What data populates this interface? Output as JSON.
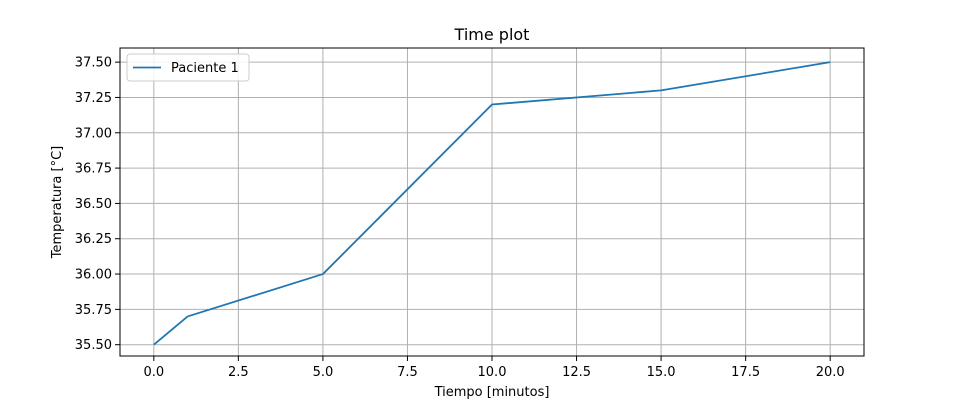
{
  "chart_data": {
    "type": "line",
    "title": "Time plot",
    "xlabel": "Tiempo [minutos]",
    "ylabel": "Temperatura [°C]",
    "xlim": [
      -1.0,
      21.0
    ],
    "ylim": [
      35.42,
      37.6
    ],
    "xticks": [
      0.0,
      2.5,
      5.0,
      7.5,
      10.0,
      12.5,
      15.0,
      17.5,
      20.0
    ],
    "xtick_labels": [
      "0.0",
      "2.5",
      "5.0",
      "7.5",
      "10.0",
      "12.5",
      "15.0",
      "17.5",
      "20.0"
    ],
    "yticks": [
      35.5,
      35.75,
      36.0,
      36.25,
      36.5,
      36.75,
      37.0,
      37.25,
      37.5
    ],
    "ytick_labels": [
      "35.50",
      "35.75",
      "36.00",
      "36.25",
      "36.50",
      "36.75",
      "37.00",
      "37.25",
      "37.50"
    ],
    "grid": true,
    "legend_position": "upper-left",
    "series": [
      {
        "name": "Paciente 1",
        "color": "#1f77b4",
        "x": [
          0,
          1,
          5,
          10,
          15,
          20
        ],
        "y": [
          35.5,
          35.7,
          36.0,
          37.2,
          37.3,
          37.5
        ]
      }
    ]
  }
}
